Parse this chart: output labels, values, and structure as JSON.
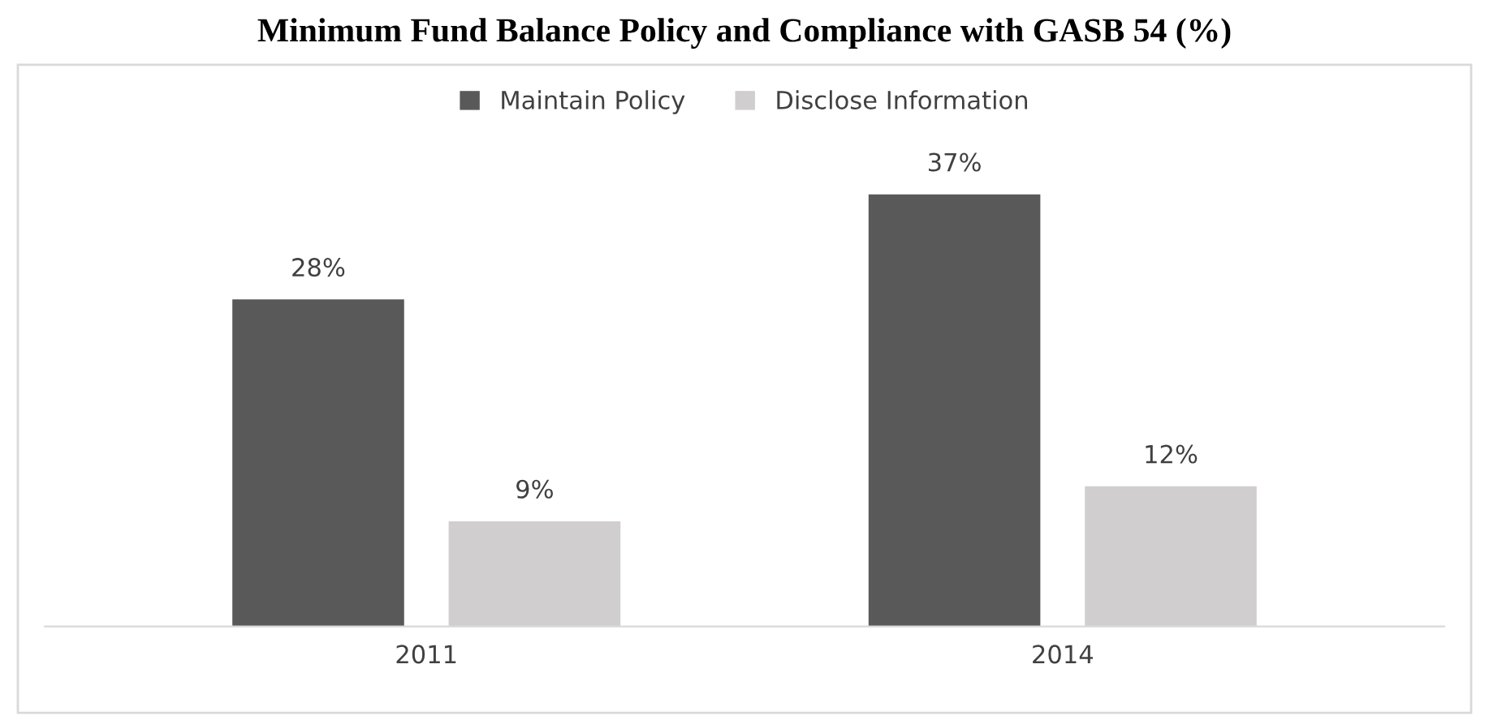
{
  "chart_data": {
    "type": "bar",
    "title": "Minimum Fund Balance Policy and Compliance with GASB 54 (%)",
    "categories": [
      "2011",
      "2014"
    ],
    "series": [
      {
        "name": "Maintain Policy",
        "color": "#595959",
        "values": [
          28,
          37
        ],
        "value_labels": [
          "28%",
          "37%"
        ]
      },
      {
        "name": "Disclose Information",
        "color": "#d0cece",
        "values": [
          9,
          12
        ],
        "value_labels": [
          "9%",
          "12%"
        ]
      }
    ],
    "legend": "top",
    "grid": false
  }
}
